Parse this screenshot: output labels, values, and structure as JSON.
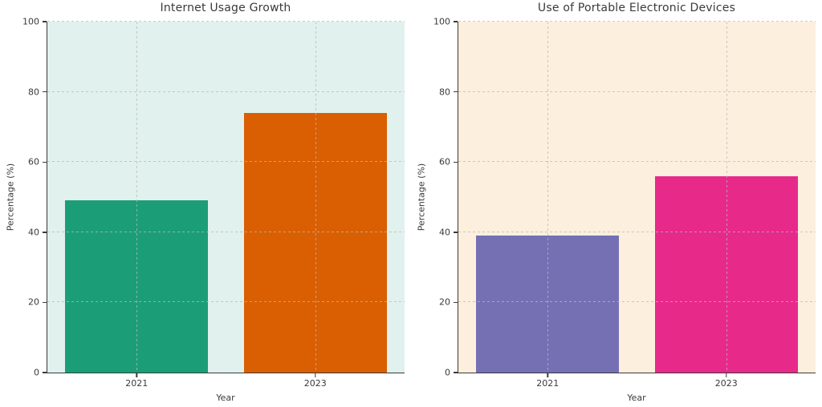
{
  "figure": {
    "background": "#ffffff",
    "text_color": "#3a3a3a",
    "spine_color": "#3a3a3a",
    "grid_color": "rgba(185,185,185,0.75)"
  },
  "chart_data": [
    {
      "type": "bar",
      "title": "Internet Usage Growth",
      "xlabel": "Year",
      "ylabel": "Percentage (%)",
      "categories": [
        "2021",
        "2023"
      ],
      "values": [
        49,
        74
      ],
      "bar_colors": [
        "#1b9e77",
        "#d95f02"
      ],
      "plot_background": "#e0f1ee",
      "ylim": [
        0,
        100
      ],
      "yticks": [
        0,
        20,
        40,
        60,
        80,
        100
      ],
      "grid": "dashed, drawn above bars",
      "legend_position": "none"
    },
    {
      "type": "bar",
      "title": "Use of Portable Electronic Devices",
      "xlabel": "Year",
      "ylabel": "Percentage (%)",
      "categories": [
        "2021",
        "2023"
      ],
      "values": [
        39,
        56
      ],
      "bar_colors": [
        "#7570b3",
        "#e7298a"
      ],
      "plot_background": "#fcefdd",
      "ylim": [
        0,
        100
      ],
      "yticks": [
        0,
        20,
        40,
        60,
        80,
        100
      ],
      "grid": "dashed, drawn above bars",
      "legend_position": "none"
    }
  ]
}
